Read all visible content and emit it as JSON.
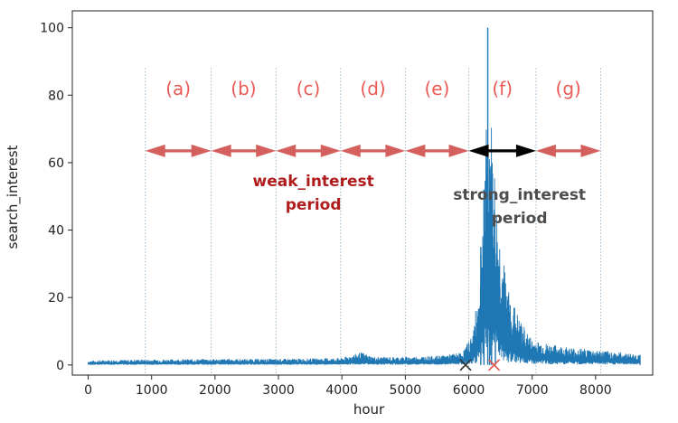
{
  "chart_data": {
    "type": "line",
    "title": "",
    "xlabel": "hour",
    "ylabel": "search_interest",
    "xlim": [
      -250,
      8900
    ],
    "ylim": [
      -3,
      105
    ],
    "xticks": [
      0,
      1000,
      2000,
      3000,
      4000,
      5000,
      6000,
      7000,
      8000
    ],
    "xtick_labels": [
      "0",
      "1000",
      "2000",
      "3000",
      "4000",
      "5000",
      "6000",
      "7000",
      "8000"
    ],
    "yticks": [
      0,
      20,
      40,
      60,
      80,
      100
    ],
    "ytick_labels": [
      "0",
      "20",
      "40",
      "60",
      "80",
      "100"
    ],
    "grid": false,
    "series_color": "#1f77b4",
    "series": [
      {
        "name": "search_interest",
        "shape": [
          {
            "x": 0,
            "y": 0.8
          },
          {
            "x": 300,
            "y": 1.0
          },
          {
            "x": 1000,
            "y": 1.1
          },
          {
            "x": 2000,
            "y": 1.2
          },
          {
            "x": 3000,
            "y": 1.2
          },
          {
            "x": 4000,
            "y": 1.4
          },
          {
            "x": 4300,
            "y": 2.5
          },
          {
            "x": 4500,
            "y": 1.6
          },
          {
            "x": 5000,
            "y": 1.6
          },
          {
            "x": 5500,
            "y": 1.8
          },
          {
            "x": 5900,
            "y": 2.5
          },
          {
            "x": 6050,
            "y": 6
          },
          {
            "x": 6150,
            "y": 14
          },
          {
            "x": 6220,
            "y": 30
          },
          {
            "x": 6280,
            "y": 48
          },
          {
            "x": 6330,
            "y": 52
          },
          {
            "x": 6380,
            "y": 45
          },
          {
            "x": 6450,
            "y": 30
          },
          {
            "x": 6600,
            "y": 16
          },
          {
            "x": 6800,
            "y": 9
          },
          {
            "x": 7000,
            "y": 5
          },
          {
            "x": 7300,
            "y": 4
          },
          {
            "x": 7600,
            "y": 3.5
          },
          {
            "x": 8000,
            "y": 3
          },
          {
            "x": 8400,
            "y": 2.5
          },
          {
            "x": 8700,
            "y": 2
          }
        ],
        "peaks": [
          {
            "x": 6190,
            "y": 35
          },
          {
            "x": 6240,
            "y": 52
          },
          {
            "x": 6300,
            "y": 100
          },
          {
            "x": 6330,
            "y": 58
          },
          {
            "x": 6360,
            "y": 48
          },
          {
            "x": 6420,
            "y": 28
          },
          {
            "x": 8700,
            "y": 3
          }
        ]
      }
    ],
    "boundaries": [
      900,
      1940,
      2960,
      3980,
      5000,
      6000,
      7060,
      8080
    ],
    "segments": [
      {
        "label": "(a)",
        "x_start": 900,
        "x_end": 1940
      },
      {
        "label": "(b)",
        "x_start": 1940,
        "x_end": 2960
      },
      {
        "label": "(c)",
        "x_start": 2960,
        "x_end": 3980
      },
      {
        "label": "(d)",
        "x_start": 3980,
        "x_end": 5000
      },
      {
        "label": "(e)",
        "x_start": 5000,
        "x_end": 6000
      },
      {
        "label": "(f)",
        "x_start": 6000,
        "x_end": 7060
      },
      {
        "label": "(g)",
        "x_start": 7060,
        "x_end": 8080
      }
    ],
    "segment_label_y": 82,
    "arrow_y": 63.5,
    "strong_segment_index": 5,
    "periods": [
      {
        "line1": "weak_interest",
        "line2": "period",
        "x": 3550,
        "y1": 53,
        "y2": 46,
        "color": "#b01c1c"
      },
      {
        "line1": "strong_interest",
        "line2": "period",
        "x": 6800,
        "y1": 49,
        "y2": 42,
        "color": "#4d4d4d"
      }
    ],
    "markers": [
      {
        "x": 5950,
        "y": 0,
        "color": "#333333",
        "symbol": "x"
      },
      {
        "x": 6400,
        "y": 0,
        "color": "#e0524a",
        "symbol": "x"
      }
    ],
    "colors": {
      "arrow": "#d4605e",
      "arrow_strong": "#000000",
      "segment_label": "#ec5a55",
      "boundary": "#9fb8c9"
    }
  }
}
